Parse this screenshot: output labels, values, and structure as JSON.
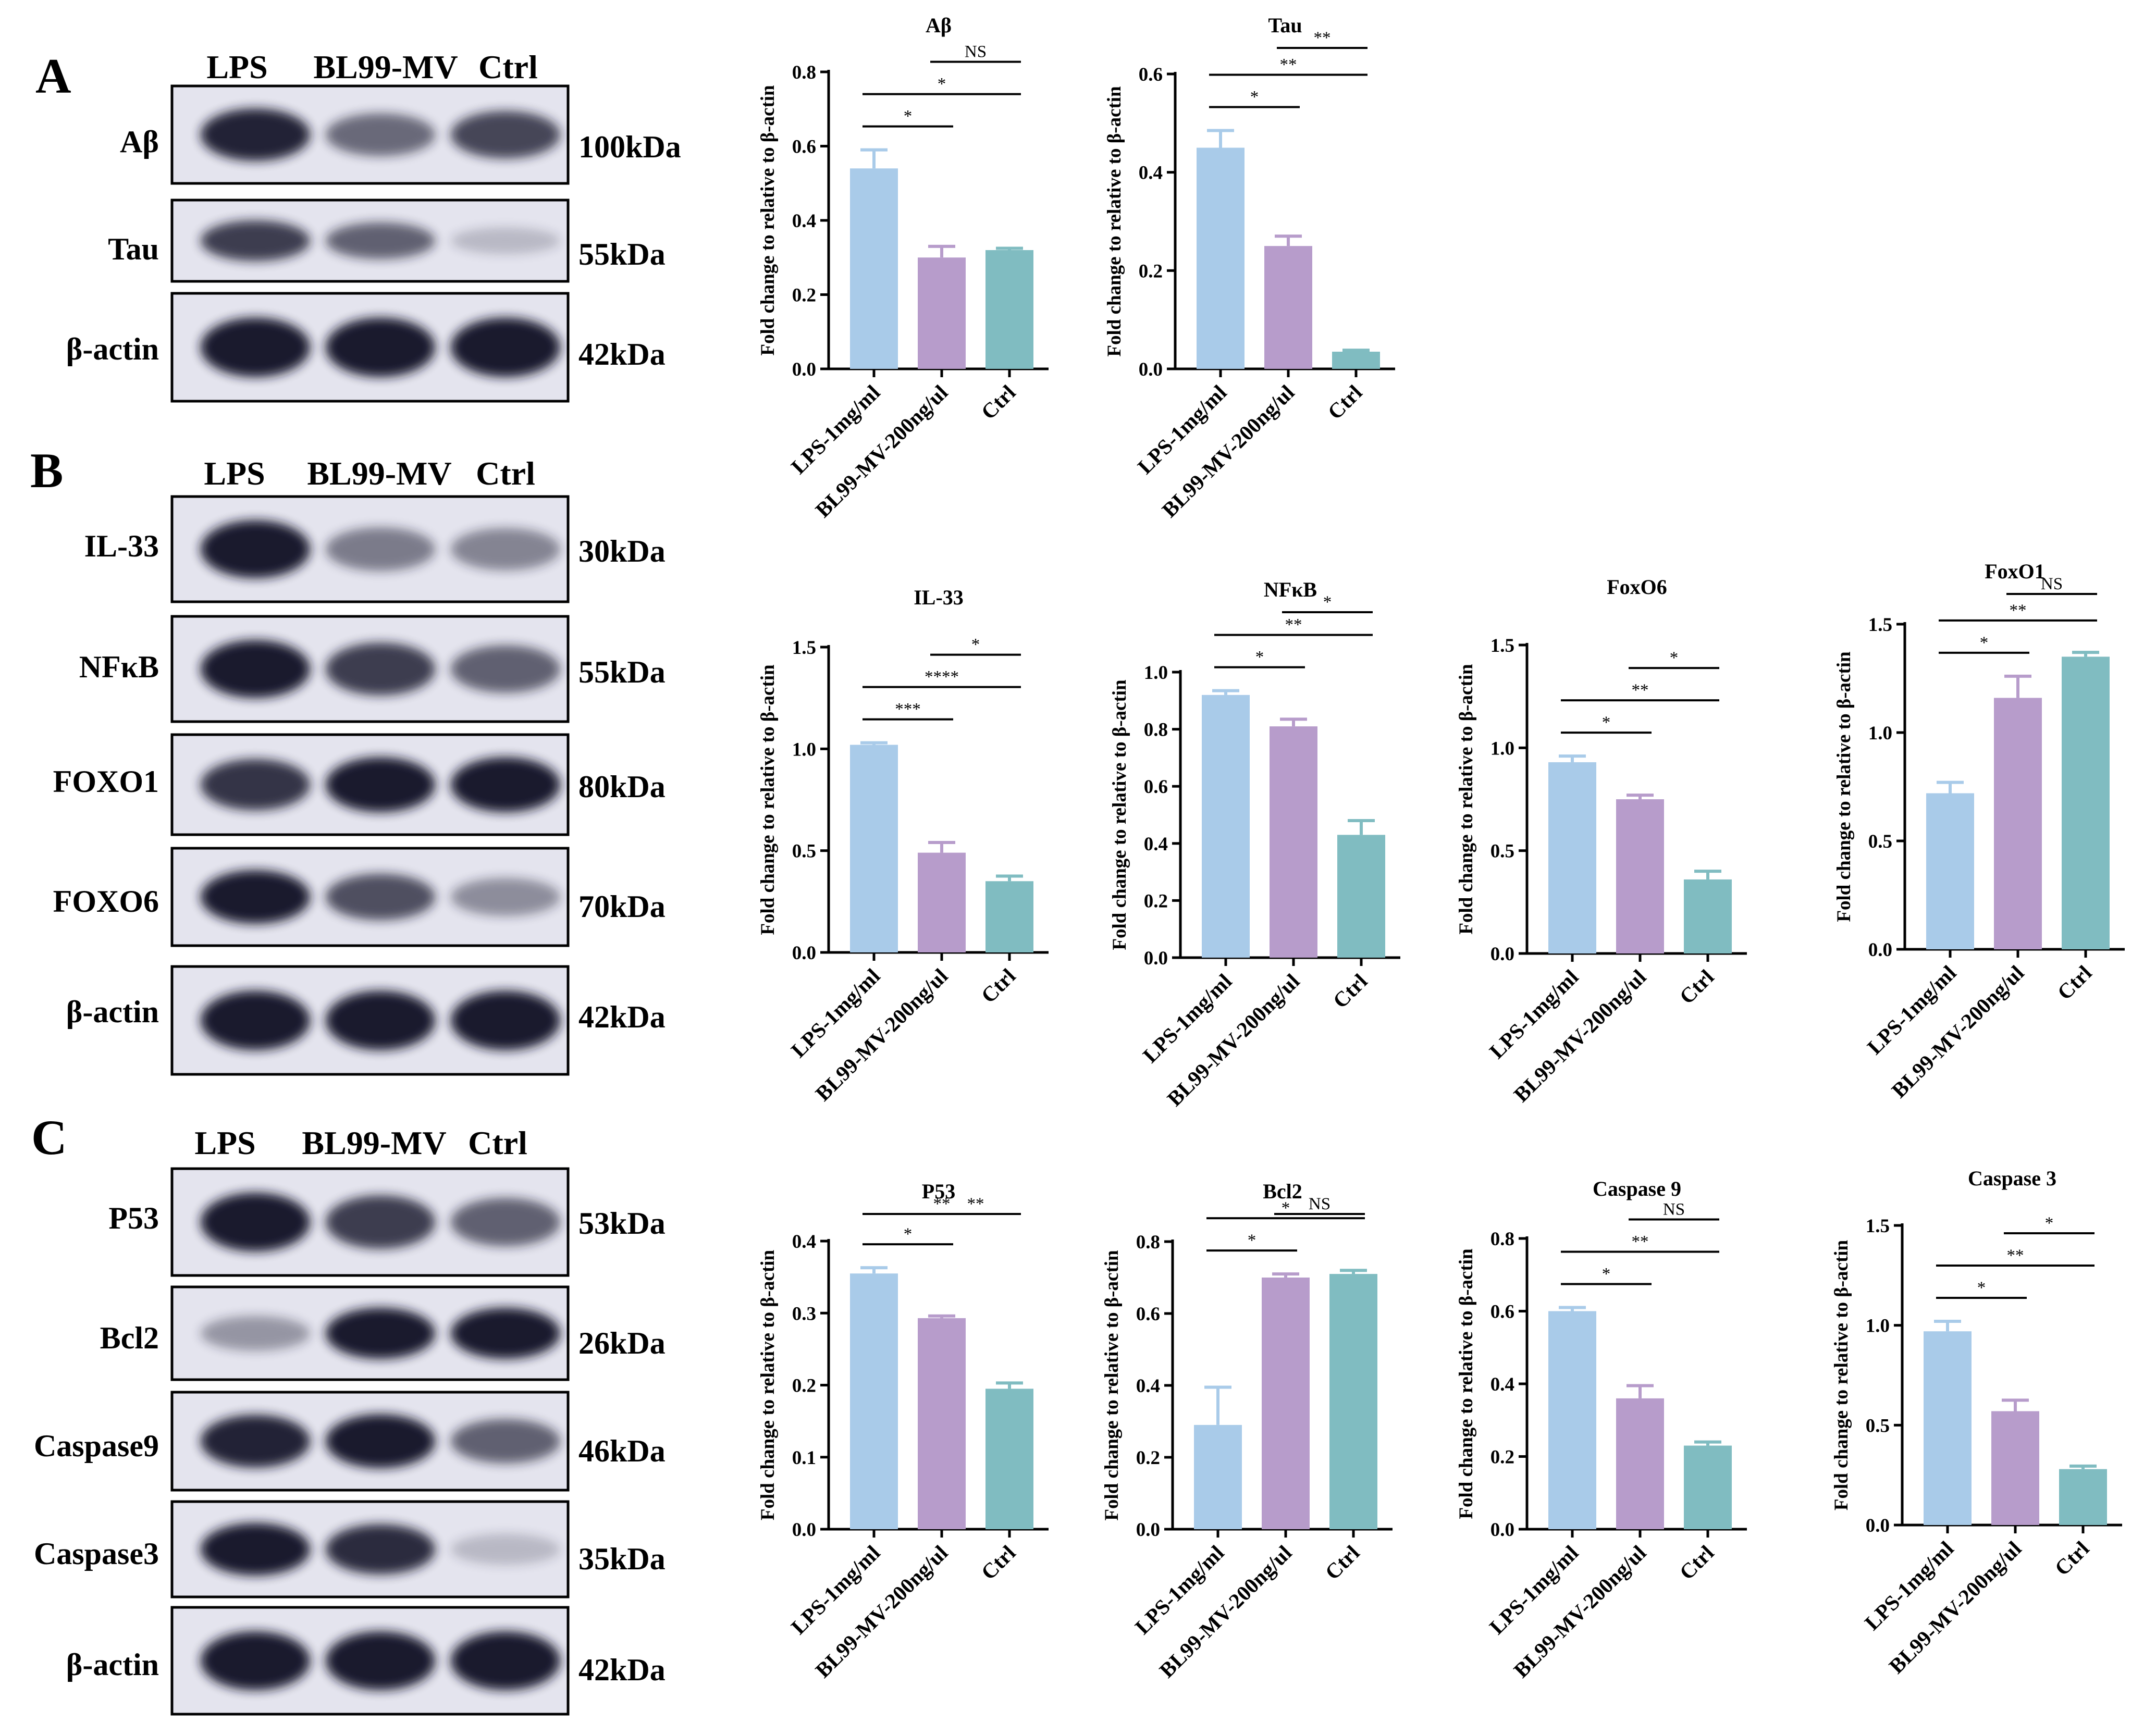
{
  "blot_panels": [
    {
      "letter": "A",
      "lanes": [
        "LPS",
        "BL99-MV",
        "Ctrl"
      ],
      "rows": [
        {
          "label": "Aβ",
          "kda": "100kDa",
          "intensity": [
            0.95,
            0.55,
            0.75
          ]
        },
        {
          "label": "Tau",
          "kda": "55kDa",
          "intensity": [
            0.8,
            0.6,
            0.1
          ]
        },
        {
          "label": "β-actin",
          "kda": "42kDa",
          "intensity": [
            1.0,
            1.0,
            1.0
          ]
        }
      ]
    },
    {
      "letter": "B",
      "lanes": [
        "LPS",
        "BL99-MV",
        "Ctrl"
      ],
      "rows": [
        {
          "label": "IL-33",
          "kda": "30kDa",
          "intensity": [
            1.0,
            0.45,
            0.4
          ]
        },
        {
          "label": "NFκB",
          "kda": "55kDa",
          "intensity": [
            1.0,
            0.8,
            0.6
          ]
        },
        {
          "label": "FOXO1",
          "kda": "80kDa",
          "intensity": [
            0.85,
            1.0,
            1.0
          ]
        },
        {
          "label": "FOXO6",
          "kda": "70kDa",
          "intensity": [
            1.0,
            0.7,
            0.35
          ]
        },
        {
          "label": "β-actin",
          "kda": "42kDa",
          "intensity": [
            1.0,
            1.0,
            1.0
          ]
        }
      ]
    },
    {
      "letter": "C",
      "lanes": [
        "LPS",
        "BL99-MV",
        "Ctrl"
      ],
      "rows": [
        {
          "label": "P53",
          "kda": "53kDa",
          "intensity": [
            1.0,
            0.8,
            0.6
          ]
        },
        {
          "label": "Bcl2",
          "kda": "26kDa",
          "intensity": [
            0.3,
            1.0,
            1.0
          ]
        },
        {
          "label": "Caspase9",
          "kda": "46kDa",
          "intensity": [
            0.95,
            1.0,
            0.6
          ]
        },
        {
          "label": "Caspase3",
          "kda": "35kDa",
          "intensity": [
            1.0,
            0.9,
            0.1
          ]
        },
        {
          "label": "β-actin",
          "kda": "42kDa",
          "intensity": [
            1.0,
            1.0,
            1.0
          ]
        }
      ]
    }
  ],
  "colors": {
    "lps": "#a9cbe9",
    "mv": "#b79ccb",
    "ctrl": "#80bcc1",
    "blot_bg": "#e4e4ee",
    "band": "#15152a"
  },
  "chart_data": [
    {
      "type": "bar",
      "title": "Aβ",
      "ylabel": "Fold change to relative to β-actin",
      "categories": [
        "LPS-1mg/ml",
        "BL99-MV-200ng/ul",
        "Ctrl"
      ],
      "values": [
        0.54,
        0.3,
        0.32
      ],
      "errors": [
        0.05,
        0.03,
        0.005
      ],
      "ylim": [
        0,
        0.8
      ],
      "yticks": [
        "0.0",
        "0.2",
        "0.4",
        "0.6",
        "0.8"
      ],
      "significance": [
        {
          "from": 0,
          "to": 1,
          "label": "*"
        },
        {
          "from": 0,
          "to": 2,
          "label": "*"
        },
        {
          "from": 1,
          "to": 2,
          "label": "NS"
        }
      ]
    },
    {
      "type": "bar",
      "title": "Tau",
      "ylabel": "Fold change to relative to β-actin",
      "categories": [
        "LPS-1mg/ml",
        "BL99-MV-200ng/ul",
        "Ctrl"
      ],
      "values": [
        0.45,
        0.25,
        0.035
      ],
      "errors": [
        0.035,
        0.02,
        0.003
      ],
      "ylim": [
        0,
        0.6
      ],
      "yticks": [
        "0.0",
        "0.2",
        "0.4",
        "0.6"
      ],
      "significance": [
        {
          "from": 0,
          "to": 1,
          "label": "*"
        },
        {
          "from": 0,
          "to": 2,
          "label": "**"
        },
        {
          "from": 1,
          "to": 2,
          "label": "**"
        }
      ]
    },
    {
      "type": "bar",
      "title": "IL-33",
      "ylabel": "Fold change to relative to β-actin",
      "categories": [
        "LPS-1mg/ml",
        "BL99-MV-200ng/ul",
        "Ctrl"
      ],
      "values": [
        1.02,
        0.49,
        0.35
      ],
      "errors": [
        0.01,
        0.05,
        0.025
      ],
      "ylim": [
        0,
        1.5
      ],
      "yticks": [
        "0.0",
        "0.5",
        "1.0",
        "1.5"
      ],
      "significance": [
        {
          "from": 0,
          "to": 1,
          "label": "***"
        },
        {
          "from": 0,
          "to": 2,
          "label": "****"
        },
        {
          "from": 1,
          "to": 2,
          "label": "*"
        }
      ]
    },
    {
      "type": "bar",
      "title": "NFκB",
      "ylabel": "Fold change to relative to β-actin",
      "categories": [
        "LPS-1mg/ml",
        "BL99-MV-200ng/ul",
        "Ctrl"
      ],
      "values": [
        0.92,
        0.81,
        0.43
      ],
      "errors": [
        0.015,
        0.025,
        0.05
      ],
      "ylim": [
        0,
        1.0
      ],
      "yticks": [
        "0.0",
        "0.2",
        "0.4",
        "0.6",
        "0.8",
        "1.0"
      ],
      "significance": [
        {
          "from": 0,
          "to": 1,
          "label": "*"
        },
        {
          "from": 0,
          "to": 2,
          "label": "**"
        },
        {
          "from": 1,
          "to": 2,
          "label": "*"
        }
      ]
    },
    {
      "type": "bar",
      "title": "FoxO6",
      "ylabel": "Fold change to relative to β-actin",
      "categories": [
        "LPS-1mg/ml",
        "BL99-MV-200ng/ul",
        "Ctrl"
      ],
      "values": [
        0.93,
        0.75,
        0.36
      ],
      "errors": [
        0.03,
        0.02,
        0.04
      ],
      "ylim": [
        0,
        1.5
      ],
      "yticks": [
        "0.0",
        "0.5",
        "1.0",
        "1.5"
      ],
      "significance": [
        {
          "from": 0,
          "to": 1,
          "label": "*"
        },
        {
          "from": 0,
          "to": 2,
          "label": "**"
        },
        {
          "from": 1,
          "to": 2,
          "label": "*"
        }
      ]
    },
    {
      "type": "bar",
      "title": "FoxO1",
      "ylabel": "Fold change to relative to β-actin",
      "categories": [
        "LPS-1mg/ml",
        "BL99-MV-200ng/ul",
        "Ctrl"
      ],
      "values": [
        0.72,
        1.16,
        1.35
      ],
      "errors": [
        0.05,
        0.1,
        0.02
      ],
      "ylim": [
        0,
        1.5
      ],
      "yticks": [
        "0.0",
        "0.5",
        "1.0",
        "1.5"
      ],
      "significance": [
        {
          "from": 0,
          "to": 1,
          "label": "*"
        },
        {
          "from": 0,
          "to": 2,
          "label": "**"
        },
        {
          "from": 1,
          "to": 2,
          "label": "NS"
        }
      ]
    },
    {
      "type": "bar",
      "title": "P53",
      "ylabel": "Fold change to relative to β-actin",
      "categories": [
        "LPS-1mg/ml",
        "BL99-MV-200ng/ul",
        "Ctrl"
      ],
      "values": [
        0.355,
        0.293,
        0.195
      ],
      "errors": [
        0.008,
        0.003,
        0.008
      ],
      "ylim": [
        0,
        0.4
      ],
      "yticks": [
        "0.0",
        "0.1",
        "0.2",
        "0.3",
        "0.4"
      ],
      "significance": [
        {
          "from": 0,
          "to": 1,
          "label": "*"
        },
        {
          "from": 0,
          "to": 2,
          "label": "**"
        },
        {
          "from": 1,
          "to": 2,
          "label": "**"
        }
      ]
    },
    {
      "type": "bar",
      "title": "Bcl2",
      "ylabel": "Fold change to relative to β-actin",
      "categories": [
        "LPS-1mg/ml",
        "BL99-MV-200ng/ul",
        "Ctrl"
      ],
      "values": [
        0.29,
        0.7,
        0.71
      ],
      "errors": [
        0.105,
        0.01,
        0.01
      ],
      "ylim": [
        0,
        0.8
      ],
      "yticks": [
        "0.0",
        "0.2",
        "0.4",
        "0.6",
        "0.8"
      ],
      "significance": [
        {
          "from": 0,
          "to": 1,
          "label": "*"
        },
        {
          "from": 0,
          "to": 2,
          "label": "*"
        },
        {
          "from": 1,
          "to": 2,
          "label": "NS"
        }
      ]
    },
    {
      "type": "bar",
      "title": "Caspase 9",
      "ylabel": "Fold change to relative to β-actin",
      "categories": [
        "LPS-1mg/ml",
        "BL99-MV-200ng/ul",
        "Ctrl"
      ],
      "values": [
        0.6,
        0.36,
        0.23
      ],
      "errors": [
        0.01,
        0.035,
        0.01
      ],
      "ylim": [
        0,
        0.8
      ],
      "yticks": [
        "0.0",
        "0.2",
        "0.4",
        "0.6",
        "0.8"
      ],
      "significance": [
        {
          "from": 0,
          "to": 1,
          "label": "*"
        },
        {
          "from": 0,
          "to": 2,
          "label": "**"
        },
        {
          "from": 1,
          "to": 2,
          "label": "NS"
        }
      ]
    },
    {
      "type": "bar",
      "title": "Caspase 3",
      "ylabel": "Fold change to relative to β-actin",
      "categories": [
        "LPS-1mg/ml",
        "BL99-MV-200ng/ul",
        "Ctrl"
      ],
      "values": [
        0.97,
        0.57,
        0.28
      ],
      "errors": [
        0.05,
        0.055,
        0.015
      ],
      "ylim": [
        0,
        1.5
      ],
      "yticks": [
        "0.0",
        "0.5",
        "1.0",
        "1.5"
      ],
      "significance": [
        {
          "from": 0,
          "to": 1,
          "label": "*"
        },
        {
          "from": 0,
          "to": 2,
          "label": "**"
        },
        {
          "from": 1,
          "to": 2,
          "label": "*"
        }
      ]
    }
  ]
}
